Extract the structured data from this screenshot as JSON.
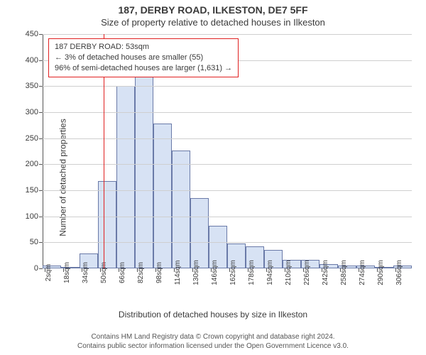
{
  "title_line1": "187, DERBY ROAD, ILKESTON, DE7 5FF",
  "title_line2": "Size of property relative to detached houses in Ilkeston",
  "ylabel": "Number of detached properties",
  "xlabel": "Distribution of detached houses by size in Ilkeston",
  "footer_line1": "Contains HM Land Registry data © Crown copyright and database right 2024.",
  "footer_line2": "Contains public sector information licensed under the Open Government Licence v3.0.",
  "chart": {
    "type": "histogram",
    "ylim": [
      0,
      450
    ],
    "yticks": [
      0,
      50,
      100,
      150,
      200,
      250,
      300,
      350,
      400,
      450
    ],
    "xlim": [
      0,
      320
    ],
    "xtick_step": 16,
    "xtick_start": 2,
    "xtick_suffix": "sqm",
    "background_color": "#ffffff",
    "grid_color": "#cfcfcf",
    "axis_color": "#555555",
    "bar_fill": "#d7e2f4",
    "bar_border": "#6a7aa8",
    "bar_border_width": 1,
    "marker_color": "#e02020",
    "bin_width": 16,
    "tick_font_size": 10,
    "label_font_size": 12,
    "title_font_size": 14,
    "annotation_border": "#e02020",
    "annotation_bg": "#ffffff",
    "bars": [
      {
        "x_start": 0,
        "count": 5
      },
      {
        "x_start": 16,
        "count": 2
      },
      {
        "x_start": 32,
        "count": 28
      },
      {
        "x_start": 48,
        "count": 168
      },
      {
        "x_start": 64,
        "count": 350
      },
      {
        "x_start": 80,
        "count": 395
      },
      {
        "x_start": 96,
        "count": 278
      },
      {
        "x_start": 112,
        "count": 227
      },
      {
        "x_start": 128,
        "count": 135
      },
      {
        "x_start": 144,
        "count": 82
      },
      {
        "x_start": 160,
        "count": 48
      },
      {
        "x_start": 176,
        "count": 42
      },
      {
        "x_start": 192,
        "count": 35
      },
      {
        "x_start": 208,
        "count": 17
      },
      {
        "x_start": 224,
        "count": 17
      },
      {
        "x_start": 240,
        "count": 8
      },
      {
        "x_start": 256,
        "count": 6
      },
      {
        "x_start": 272,
        "count": 6
      },
      {
        "x_start": 288,
        "count": 3
      },
      {
        "x_start": 304,
        "count": 6
      }
    ],
    "marker_x": 53
  },
  "annotation": {
    "line1": "187 DERBY ROAD: 53sqm",
    "line2": "← 3% of detached houses are smaller (55)",
    "line3": "96% of semi-detached houses are larger (1,631) →"
  }
}
